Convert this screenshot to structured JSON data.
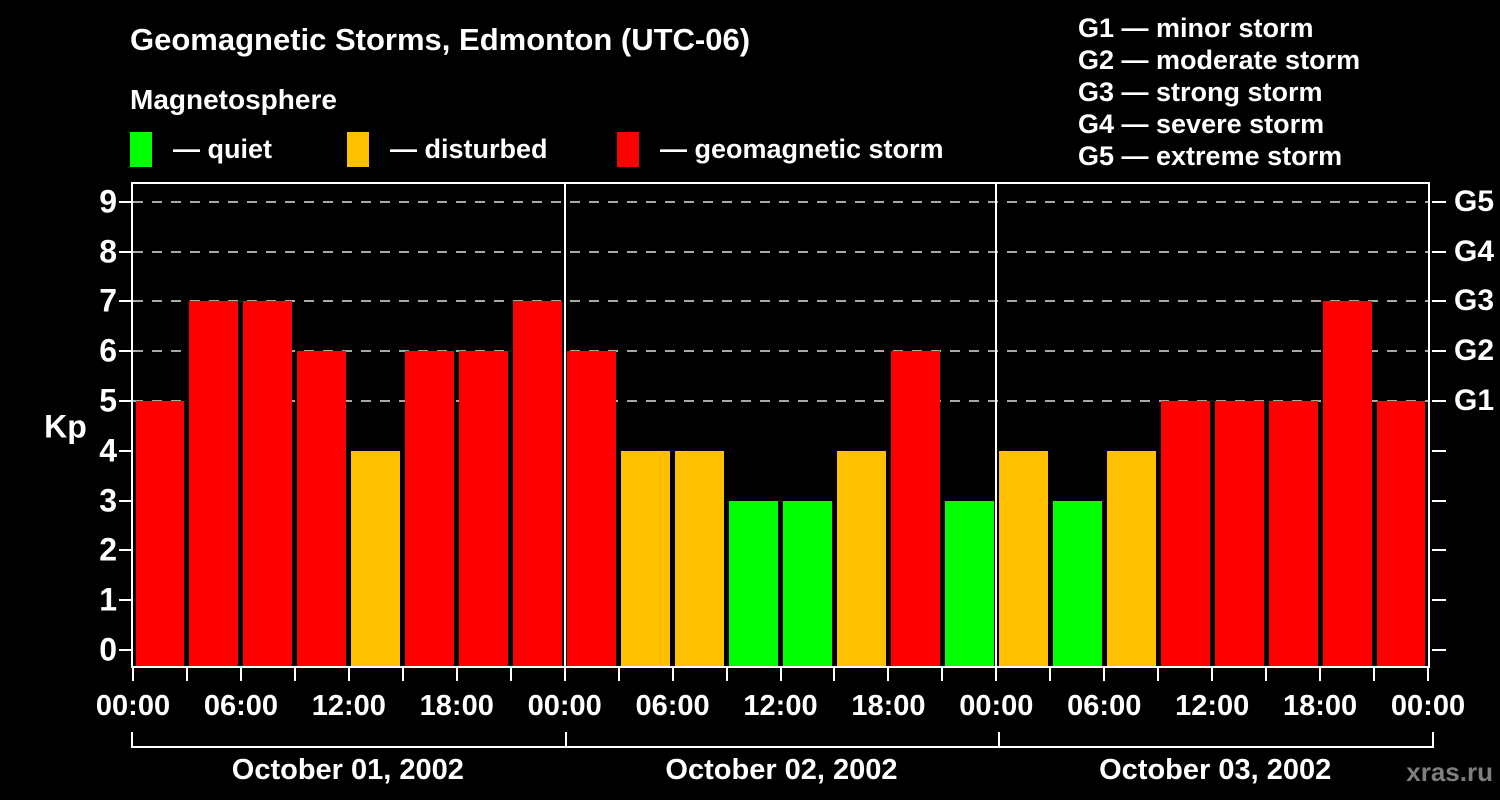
{
  "header": {
    "title": "Geomagnetic Storms, Edmonton (UTC-06)",
    "subtitle": "Magnetosphere"
  },
  "status_legend": {
    "items": [
      {
        "id": "quiet",
        "swatch_color": "#00ff00",
        "label": "— quiet"
      },
      {
        "id": "disturbed",
        "swatch_color": "#ffc000",
        "label": "— disturbed"
      },
      {
        "id": "storm",
        "swatch_color": "#ff0000",
        "label": "— geomagnetic storm"
      }
    ]
  },
  "g_legend": {
    "separator": "—",
    "items": [
      {
        "code": "G1",
        "label": "minor storm"
      },
      {
        "code": "G2",
        "label": "moderate storm"
      },
      {
        "code": "G3",
        "label": "strong storm"
      },
      {
        "code": "G4",
        "label": "severe storm"
      },
      {
        "code": "G5",
        "label": "extreme storm"
      }
    ]
  },
  "watermark": "xras.ru",
  "chart_data": {
    "type": "bar",
    "title": "Geomagnetic Storms, Edmonton (UTC-06)",
    "ylabel": "Kp",
    "ylim": [
      0,
      9
    ],
    "y_ticks": [
      0,
      1,
      2,
      3,
      4,
      5,
      6,
      7,
      8,
      9
    ],
    "gridline_levels_kp": [
      5,
      6,
      7,
      8,
      9
    ],
    "grid_style": "dashed",
    "right_axis": {
      "labels": [
        "G1",
        "G2",
        "G3",
        "G4",
        "G5"
      ],
      "kp_levels": [
        5,
        6,
        7,
        8,
        9
      ]
    },
    "x_tick_interval_hours": 3,
    "x_label_interval_hours": 6,
    "x_labels": [
      "00:00",
      "06:00",
      "12:00",
      "18:00",
      "00:00",
      "06:00",
      "12:00",
      "18:00",
      "00:00",
      "06:00",
      "12:00",
      "18:00",
      "00:00"
    ],
    "bar_interval_hours": 3,
    "colors": {
      "quiet": "#00ff00",
      "disturbed": "#ffc000",
      "storm": "#ff0000"
    },
    "days": [
      {
        "date": "October 01, 2002",
        "kp_values": [
          5,
          7,
          7,
          6,
          4,
          6,
          6,
          7
        ],
        "statuses": [
          "storm",
          "storm",
          "storm",
          "storm",
          "disturbed",
          "storm",
          "storm",
          "storm"
        ]
      },
      {
        "date": "October 02, 2002",
        "kp_values": [
          6,
          4,
          4,
          3,
          3,
          4,
          6,
          3
        ],
        "statuses": [
          "storm",
          "disturbed",
          "disturbed",
          "quiet",
          "quiet",
          "disturbed",
          "storm",
          "quiet"
        ]
      },
      {
        "date": "October 03, 2002",
        "kp_values": [
          4,
          3,
          4,
          5,
          5,
          5,
          7,
          5
        ],
        "statuses": [
          "disturbed",
          "quiet",
          "disturbed",
          "storm",
          "storm",
          "storm",
          "storm",
          "storm"
        ]
      }
    ]
  }
}
